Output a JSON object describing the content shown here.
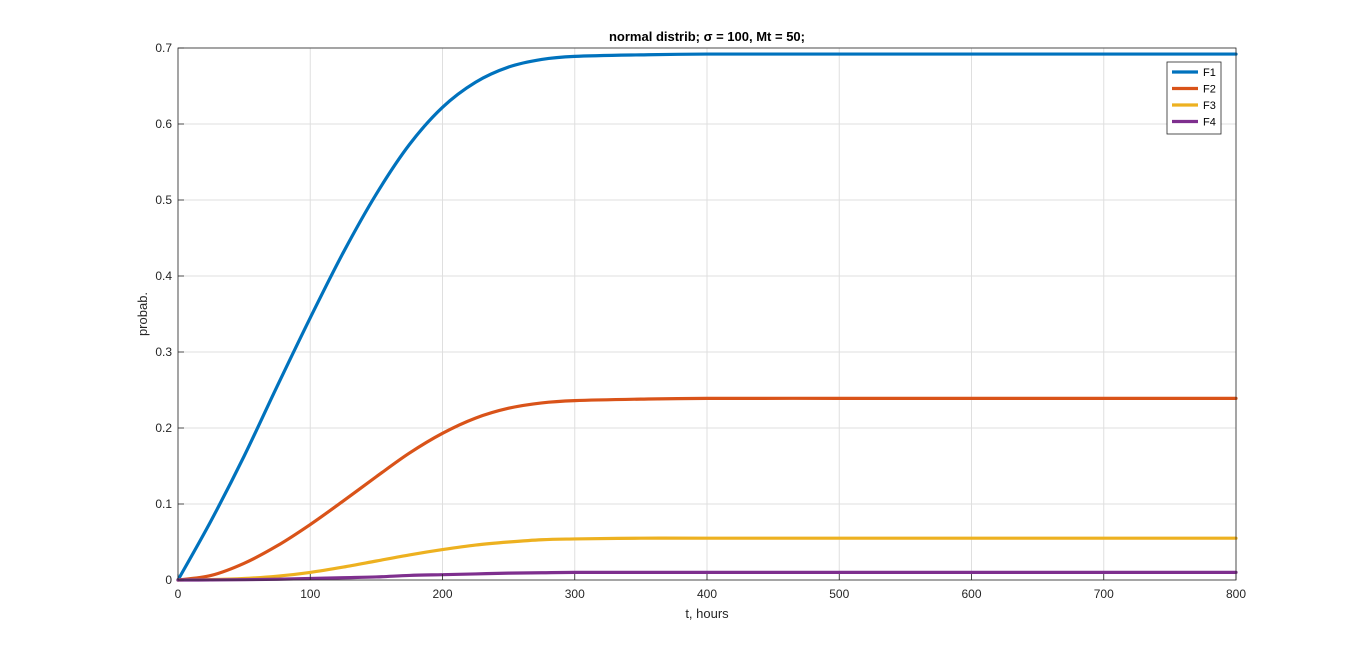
{
  "chart_data": {
    "type": "line",
    "title": "normal distrib; σ = 100, Mt = 50;",
    "xlabel": "t, hours",
    "ylabel": "probab.",
    "xlim": [
      0,
      800
    ],
    "ylim": [
      0,
      0.7
    ],
    "xticks": [
      0,
      100,
      200,
      300,
      400,
      500,
      600,
      700,
      800
    ],
    "yticks": [
      0,
      0.1,
      0.2,
      0.3,
      0.4,
      0.5,
      0.6,
      0.7
    ],
    "xtick_labels": [
      "0",
      "100",
      "200",
      "300",
      "400",
      "500",
      "600",
      "700",
      "800"
    ],
    "ytick_labels": [
      "0",
      "0.1",
      "0.2",
      "0.3",
      "0.4",
      "0.5",
      "0.6",
      "0.7"
    ],
    "grid": true,
    "legend_position": "top-right",
    "x": [
      0,
      25,
      50,
      75,
      100,
      125,
      150,
      175,
      200,
      225,
      250,
      275,
      300,
      350,
      400,
      500,
      600,
      700,
      800
    ],
    "series": [
      {
        "name": "F1",
        "color": "#0072BD",
        "values": [
          0,
          0.078,
          0.163,
          0.255,
          0.345,
          0.431,
          0.508,
          0.573,
          0.622,
          0.655,
          0.675,
          0.685,
          0.689,
          0.691,
          0.692,
          0.692,
          0.692,
          0.692,
          0.692
        ]
      },
      {
        "name": "F2",
        "color": "#D95319",
        "values": [
          0,
          0.006,
          0.022,
          0.045,
          0.073,
          0.104,
          0.136,
          0.167,
          0.193,
          0.213,
          0.226,
          0.233,
          0.236,
          0.238,
          0.239,
          0.239,
          0.239,
          0.239,
          0.239
        ]
      },
      {
        "name": "F3",
        "color": "#EDB120",
        "values": [
          0,
          0.0005,
          0.002,
          0.005,
          0.01,
          0.017,
          0.025,
          0.033,
          0.04,
          0.046,
          0.05,
          0.053,
          0.054,
          0.055,
          0.055,
          0.055,
          0.055,
          0.055,
          0.055
        ]
      },
      {
        "name": "F4",
        "color": "#7E2F8E",
        "values": [
          0,
          0.0001,
          0.0004,
          0.001,
          0.002,
          0.003,
          0.004,
          0.006,
          0.007,
          0.008,
          0.009,
          0.0095,
          0.01,
          0.01,
          0.01,
          0.01,
          0.01,
          0.01,
          0.01
        ]
      }
    ]
  }
}
